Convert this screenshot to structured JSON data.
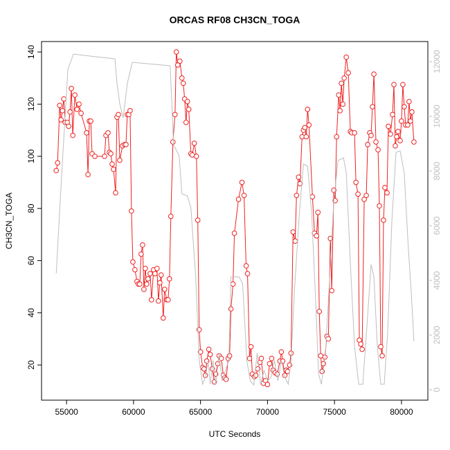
{
  "chart_data": {
    "type": "line",
    "title": "ORCAS RF08 CH3CN_TOGA",
    "xlabel": "UTC Seconds",
    "ylabel": "CH3CN_TOGA",
    "xlim": [
      53132,
      81968
    ],
    "xticks": [
      55000,
      60000,
      65000,
      70000,
      75000,
      80000
    ],
    "ylim": [
      6.5,
      144
    ],
    "yticks": [
      20,
      40,
      60,
      80,
      100,
      120,
      140
    ],
    "y2lim": [
      -380,
      12734
    ],
    "y2ticks": [
      0,
      2000,
      4000,
      6000,
      8000,
      10000,
      12000
    ],
    "series": [
      {
        "color": "#ee2020",
        "marker": "circle",
        "x": [
          54227,
          54330,
          54485,
          54588,
          54691,
          54794,
          54897,
          55052,
          55155,
          55258,
          55361,
          55464,
          55619,
          55774,
          55928,
          56083,
          56495,
          56598,
          56701,
          56804,
          56907,
          57113,
          57835,
          57939,
          58093,
          58196,
          58299,
          58403,
          58506,
          58660,
          58763,
          58867,
          58970,
          59176,
          59330,
          59434,
          59537,
          59640,
          59742,
          59845,
          59949,
          60104,
          60258,
          60361,
          60464,
          60568,
          60671,
          60774,
          60877,
          60980,
          61083,
          61238,
          61341,
          61496,
          61599,
          61753,
          61856,
          61960,
          62063,
          62216,
          62320,
          62475,
          62578,
          62681,
          62784,
          62939,
          63094,
          63196,
          63300,
          63455,
          63610,
          63712,
          63816,
          63919,
          64022,
          64125,
          64280,
          64383,
          64537,
          64690,
          64795,
          64898,
          65000,
          65156,
          65260,
          65362,
          65465,
          65620,
          65723,
          65877,
          66032,
          66135,
          66290,
          66393,
          66548,
          66700,
          66805,
          66908,
          67063,
          67166,
          67270,
          67424,
          67527,
          67836,
          68094,
          68250,
          68405,
          68508,
          68661,
          68764,
          68867,
          69022,
          69125,
          69280,
          69434,
          69537,
          69692,
          69847,
          70000,
          70156,
          70310,
          70414,
          70568,
          70723,
          70929,
          71032,
          71135,
          71290,
          71393,
          71496,
          71650,
          71754,
          71908,
          72063,
          72166,
          72320,
          72424,
          72580,
          72682,
          72785,
          72888,
          72990,
          73094,
          73352,
          73507,
          73660,
          73764,
          73867,
          73970,
          74074,
          74177,
          74280,
          74434,
          74540,
          74693,
          74796,
          74950,
          75053,
          75156,
          75310,
          75414,
          75517,
          75620,
          75723,
          75878,
          76032,
          76187,
          76290,
          76496,
          76600,
          76754,
          76857,
          76960,
          77063,
          77218,
          77372,
          77476,
          77630,
          77733,
          77836,
          77940,
          78094,
          78250,
          78352,
          78455,
          78558,
          78660,
          78765,
          78920,
          79023,
          79177,
          79332,
          79435,
          79538,
          79640,
          79744,
          79900,
          80000,
          80104,
          80207,
          80310,
          80465,
          80568,
          80670,
          80774,
          80930
        ],
        "values": [
          94.5,
          97.5,
          119.5,
          114,
          117.5,
          122,
          113,
          113,
          111.5,
          117,
          126,
          108,
          123.5,
          118,
          120,
          116.5,
          109,
          93,
          113.5,
          113.5,
          101,
          100,
          100,
          108,
          109,
          101.5,
          101,
          97,
          95,
          86,
          115,
          116,
          98.5,
          104,
          104.5,
          104.5,
          116,
          116,
          117.5,
          79,
          59.5,
          56.5,
          52,
          51,
          51,
          62.5,
          66,
          49,
          57,
          51,
          53,
          55,
          45,
          56.5,
          55,
          57,
          44.5,
          51.5,
          54.5,
          38,
          49,
          45,
          45,
          53,
          77,
          105.5,
          116,
          140,
          135,
          136.5,
          130,
          128,
          122,
          113,
          121,
          118,
          101,
          100.5,
          105,
          100,
          75.5,
          33.5,
          25,
          19,
          18.5,
          16,
          21.5,
          26,
          24,
          18.5,
          13.5,
          16.5,
          20.5,
          23.5,
          22.5,
          16,
          15,
          14.5,
          22.5,
          23.5,
          41.5,
          51,
          70.5,
          83.5,
          90,
          85,
          58,
          55,
          22.5,
          27,
          16.5,
          15.5,
          16,
          18.5,
          21,
          22.5,
          13,
          14,
          12.5,
          20.5,
          22.5,
          18,
          17,
          16.5,
          21.5,
          25,
          21.5,
          16,
          18,
          17.5,
          20,
          24.5,
          71,
          67.5,
          85,
          92,
          89.5,
          107.5,
          110,
          111,
          107.5,
          118,
          112,
          84.5,
          70.5,
          69.5,
          78.5,
          40.5,
          23.5,
          17.5,
          20.5,
          23,
          31,
          30,
          68.5,
          48.5,
          87,
          83,
          107.5,
          123.5,
          117.5,
          128,
          120,
          130,
          138,
          132,
          109.5,
          109,
          109,
          90,
          85.5,
          29.5,
          28,
          26,
          83.5,
          85,
          104.5,
          109,
          108,
          119,
          131.5,
          105.5,
          102.5,
          81,
          27,
          23.5,
          75.5,
          88,
          86,
          111.5,
          108.5,
          116,
          127.5,
          104,
          107.5,
          109.5,
          106,
          113.5,
          127.5,
          119,
          112,
          112,
          121,
          113.5,
          117,
          105.5
        ]
      },
      {
        "color": "#bebebe",
        "axis": "y2",
        "x": [
          54227,
          54640,
          55100,
          55515,
          56804,
          58609,
          58763,
          58970,
          59227,
          59537,
          59900,
          62733,
          62990,
          63145,
          63400,
          63610,
          64022,
          64280,
          64640,
          64898,
          65156,
          65362,
          65568,
          65723,
          65929,
          66135,
          66393,
          66598,
          66856,
          67114,
          67270,
          67888,
          68146,
          68455,
          68713,
          68970,
          69228,
          69486,
          69743,
          70000,
          70258,
          70516,
          70774,
          71032,
          71290,
          71548,
          71754,
          72010,
          72374,
          72682,
          72990,
          73300,
          73558,
          73815,
          74020,
          74330,
          74640,
          74950,
          75260,
          75672,
          75878,
          76187,
          76496,
          76805,
          77115,
          77424,
          77733,
          77940,
          78197,
          78455,
          78713,
          78970,
          79280,
          79590,
          79900,
          80207,
          80516,
          80722,
          80928
        ],
        "values": [
          4253,
          7924,
          11722,
          12278,
          12200,
          12101,
          11215,
          10456,
          9949,
          11200,
          11975,
          11848,
          8937,
          8810,
          8557,
          7165,
          7089,
          6658,
          4127,
          1076,
          203,
          456,
          1076,
          203,
          1076,
          177,
          1342,
          329,
          709,
          1076,
          4127,
          4127,
          3873,
          1076,
          329,
          177,
          1342,
          203,
          709,
          329,
          456,
          1076,
          329,
          1076,
          456,
          203,
          1076,
          3620,
          6405,
          8253,
          8177,
          6405,
          3620,
          582,
          203,
          1342,
          4127,
          6911,
          8380,
          8481,
          7924,
          4633,
          1595,
          203,
          203,
          2354,
          4582,
          4127,
          1595,
          203,
          203,
          2101,
          6152,
          8684,
          8734,
          7924,
          5139,
          3620,
          1772
        ]
      }
    ]
  }
}
